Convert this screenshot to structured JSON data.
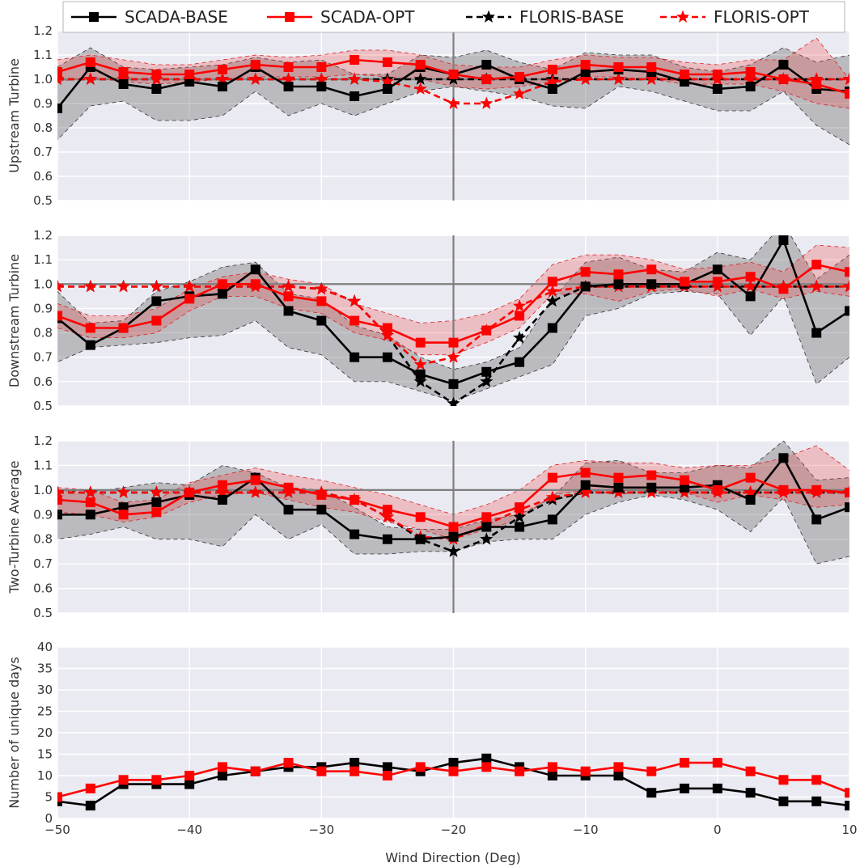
{
  "chart_data": {
    "type": "line",
    "xlabel": "Wind Direction (Deg)",
    "xlim": [
      -50,
      10
    ],
    "xticks": [
      -50,
      -40,
      -30,
      -20,
      -10,
      0,
      10
    ],
    "x": [
      -50,
      -47.5,
      -45,
      -42.5,
      -40,
      -37.5,
      -35,
      -32.5,
      -30,
      -27.5,
      -25,
      -22.5,
      -20,
      -17.5,
      -15,
      -12.5,
      -10,
      -7.5,
      -5,
      -2.5,
      0,
      2.5,
      5,
      7.5,
      10
    ],
    "x_floris": [
      -50,
      -47.5,
      -45,
      -42.5,
      -40,
      -37.5,
      -35,
      -32.5,
      -30,
      -27.5,
      -25,
      -22.5,
      -20,
      -17.5,
      -15,
      -12.5,
      -10,
      -7.5,
      -5,
      -2.5,
      0,
      2.5,
      5,
      7.5,
      10
    ],
    "grid": true,
    "legend": {
      "placement": "top",
      "entries": [
        {
          "label": "SCADA-BASE",
          "color": "#000000",
          "linestyle": "solid",
          "marker": "square"
        },
        {
          "label": "SCADA-OPT",
          "color": "#ff0000",
          "linestyle": "solid",
          "marker": "square"
        },
        {
          "label": "FLORIS-BASE",
          "color": "#000000",
          "linestyle": "dashed",
          "marker": "star"
        },
        {
          "label": "FLORIS-OPT",
          "color": "#ff0000",
          "linestyle": "dashed",
          "marker": "star"
        }
      ]
    },
    "panels": [
      {
        "ylabel": "Upstream Turbine",
        "ylim": [
          0.5,
          1.2
        ],
        "yticks": [
          0.5,
          0.6,
          0.7,
          0.8,
          0.9,
          1.0,
          1.1,
          1.2
        ],
        "ytick_labels": [
          "0.5",
          "0.6",
          "0.7",
          "0.8",
          "0.9",
          "1.0",
          "1.1",
          "1.2"
        ],
        "hline": 1.0,
        "vline": -20,
        "series": [
          {
            "name": "SCADA-BASE",
            "values": [
              0.88,
              1.05,
              0.98,
              0.96,
              0.99,
              0.97,
              1.05,
              0.97,
              0.97,
              0.93,
              0.96,
              1.05,
              1.02,
              1.06,
              1.0,
              0.96,
              1.03,
              1.04,
              1.03,
              0.99,
              0.96,
              0.97,
              1.06,
              0.96,
              0.95
            ],
            "band_lo": [
              0.75,
              0.89,
              0.91,
              0.83,
              0.83,
              0.85,
              0.95,
              0.85,
              0.9,
              0.85,
              0.9,
              0.95,
              0.97,
              0.95,
              0.93,
              0.89,
              0.88,
              0.97,
              0.95,
              0.91,
              0.87,
              0.87,
              0.95,
              0.81,
              0.73
            ],
            "band_hi": [
              1.05,
              1.13,
              1.05,
              1.04,
              1.05,
              1.06,
              1.09,
              1.07,
              1.08,
              1.02,
              1.02,
              1.1,
              1.09,
              1.12,
              1.07,
              1.04,
              1.11,
              1.1,
              1.1,
              1.05,
              1.03,
              1.06,
              1.13,
              1.07,
              1.1
            ]
          },
          {
            "name": "SCADA-OPT",
            "values": [
              1.03,
              1.07,
              1.03,
              1.02,
              1.02,
              1.04,
              1.06,
              1.05,
              1.05,
              1.08,
              1.07,
              1.06,
              1.02,
              1.0,
              1.01,
              1.04,
              1.06,
              1.05,
              1.05,
              1.02,
              1.02,
              1.03,
              1.0,
              0.98,
              0.94
            ],
            "band_lo": [
              0.99,
              1.01,
              0.99,
              0.98,
              0.99,
              1.0,
              1.01,
              1.01,
              1.01,
              1.02,
              1.01,
              1.0,
              0.97,
              0.96,
              0.97,
              0.99,
              1.01,
              1.01,
              1.0,
              0.98,
              0.98,
              0.98,
              0.95,
              0.9,
              0.88
            ],
            "band_hi": [
              1.08,
              1.1,
              1.08,
              1.06,
              1.06,
              1.08,
              1.1,
              1.09,
              1.1,
              1.12,
              1.12,
              1.1,
              1.06,
              1.05,
              1.05,
              1.08,
              1.1,
              1.09,
              1.09,
              1.07,
              1.06,
              1.08,
              1.08,
              1.17,
              1.0
            ]
          },
          {
            "name": "FLORIS-BASE",
            "values": [
              1.0,
              1.0,
              1.0,
              1.0,
              1.0,
              1.0,
              1.0,
              1.0,
              1.0,
              1.0,
              1.0,
              1.0,
              1.0,
              1.0,
              1.0,
              1.0,
              1.0,
              1.0,
              1.0,
              1.0,
              1.0,
              1.0,
              1.0,
              1.0,
              1.0
            ]
          },
          {
            "name": "FLORIS-OPT",
            "values": [
              1.0,
              1.0,
              1.0,
              1.0,
              1.0,
              1.0,
              1.0,
              1.0,
              1.0,
              1.0,
              0.99,
              0.96,
              0.9,
              0.9,
              0.94,
              0.99,
              1.0,
              1.0,
              1.0,
              1.0,
              1.0,
              1.0,
              1.0,
              1.0,
              1.0
            ]
          }
        ]
      },
      {
        "ylabel": "Downstream Turbine",
        "ylim": [
          0.5,
          1.2
        ],
        "yticks": [
          0.5,
          0.6,
          0.7,
          0.8,
          0.9,
          1.0,
          1.1,
          1.2
        ],
        "ytick_labels": [
          "0.5",
          "0.6",
          "0.7",
          "0.8",
          "0.9",
          "1.0",
          "1.1",
          "1.2"
        ],
        "hline": 1.0,
        "vline": -20,
        "series": [
          {
            "name": "SCADA-BASE",
            "values": [
              0.86,
              0.75,
              0.82,
              0.93,
              0.95,
              0.96,
              1.06,
              0.89,
              0.85,
              0.7,
              0.7,
              0.63,
              0.59,
              0.64,
              0.68,
              0.82,
              0.99,
              1.0,
              1.0,
              1.0,
              1.06,
              0.95,
              1.18,
              0.8,
              0.89
            ],
            "band_lo": [
              0.68,
              0.74,
              0.75,
              0.76,
              0.78,
              0.79,
              0.85,
              0.74,
              0.71,
              0.6,
              0.6,
              0.56,
              0.52,
              0.57,
              0.62,
              0.67,
              0.87,
              0.9,
              0.96,
              0.97,
              0.96,
              0.79,
              0.95,
              0.59,
              0.7
            ],
            "band_hi": [
              0.97,
              0.84,
              0.85,
              0.97,
              1.01,
              1.07,
              1.09,
              0.96,
              0.94,
              0.83,
              0.79,
              0.7,
              0.65,
              0.68,
              0.74,
              0.94,
              1.09,
              1.11,
              1.06,
              1.05,
              1.13,
              1.1,
              1.25,
              1.02,
              1.12
            ]
          },
          {
            "name": "SCADA-OPT",
            "values": [
              0.87,
              0.82,
              0.82,
              0.85,
              0.94,
              1.0,
              1.0,
              0.95,
              0.93,
              0.85,
              0.82,
              0.76,
              0.76,
              0.81,
              0.87,
              1.01,
              1.05,
              1.04,
              1.06,
              1.01,
              1.01,
              1.03,
              0.98,
              1.08,
              1.05
            ],
            "band_lo": [
              0.82,
              0.78,
              0.78,
              0.8,
              0.89,
              0.95,
              0.95,
              0.9,
              0.88,
              0.8,
              0.77,
              0.71,
              0.71,
              0.76,
              0.82,
              0.96,
              0.96,
              0.93,
              0.97,
              0.98,
              0.95,
              0.98,
              0.94,
              0.97,
              0.95
            ],
            "band_hi": [
              0.92,
              0.87,
              0.87,
              0.9,
              0.98,
              1.03,
              1.05,
              1.02,
              1.0,
              0.92,
              0.88,
              0.84,
              0.85,
              0.88,
              0.94,
              1.08,
              1.12,
              1.12,
              1.1,
              1.06,
              1.07,
              1.09,
              1.05,
              1.16,
              1.15
            ]
          },
          {
            "name": "FLORIS-BASE",
            "values": [
              0.99,
              0.99,
              0.99,
              0.99,
              0.99,
              0.99,
              0.99,
              0.99,
              0.98,
              0.93,
              0.79,
              0.6,
              0.51,
              0.6,
              0.78,
              0.93,
              0.99,
              0.99,
              0.99,
              0.99,
              0.99,
              0.99,
              0.99,
              0.99,
              0.99
            ]
          },
          {
            "name": "FLORIS-OPT",
            "values": [
              0.99,
              0.99,
              0.99,
              0.99,
              0.99,
              0.99,
              0.99,
              0.99,
              0.98,
              0.93,
              0.79,
              0.67,
              0.7,
              0.81,
              0.91,
              0.97,
              0.99,
              0.99,
              0.99,
              0.99,
              0.99,
              0.99,
              0.99,
              0.99,
              0.99
            ]
          }
        ]
      },
      {
        "ylabel": "Two-Turbine Average",
        "ylim": [
          0.5,
          1.2
        ],
        "yticks": [
          0.5,
          0.6,
          0.7,
          0.8,
          0.9,
          1.0,
          1.1,
          1.2
        ],
        "ytick_labels": [
          "0.5",
          "0.6",
          "0.7",
          "0.8",
          "0.9",
          "1.0",
          "1.1",
          "1.2"
        ],
        "hline": 1.0,
        "vline": -20,
        "series": [
          {
            "name": "SCADA-BASE",
            "values": [
              0.9,
              0.9,
              0.93,
              0.95,
              0.98,
              0.96,
              1.05,
              0.92,
              0.92,
              0.82,
              0.8,
              0.8,
              0.81,
              0.85,
              0.85,
              0.88,
              1.02,
              1.01,
              1.01,
              1.01,
              1.02,
              0.96,
              1.13,
              0.88,
              0.93
            ],
            "band_lo": [
              0.8,
              0.82,
              0.85,
              0.8,
              0.8,
              0.77,
              0.9,
              0.8,
              0.86,
              0.74,
              0.74,
              0.75,
              0.75,
              0.79,
              0.8,
              0.8,
              0.9,
              0.95,
              0.98,
              0.96,
              0.92,
              0.83,
              0.97,
              0.7,
              0.73
            ],
            "band_hi": [
              1.0,
              0.99,
              1.01,
              1.03,
              1.02,
              1.1,
              1.07,
              1.01,
              1.0,
              0.93,
              0.85,
              0.84,
              0.84,
              0.88,
              0.9,
              0.97,
              1.11,
              1.12,
              1.07,
              1.07,
              1.1,
              1.09,
              1.2,
              1.04,
              1.05
            ]
          },
          {
            "name": "SCADA-OPT",
            "values": [
              0.96,
              0.95,
              0.9,
              0.91,
              0.99,
              1.02,
              1.04,
              1.01,
              0.98,
              0.96,
              0.92,
              0.89,
              0.85,
              0.89,
              0.93,
              1.05,
              1.07,
              1.05,
              1.06,
              1.04,
              1.0,
              1.05,
              1.0,
              1.0,
              0.99
            ],
            "band_lo": [
              0.91,
              0.9,
              0.87,
              0.89,
              0.95,
              0.98,
              0.99,
              0.96,
              0.93,
              0.91,
              0.87,
              0.84,
              0.8,
              0.84,
              0.88,
              0.98,
              1.0,
              0.98,
              1.0,
              0.99,
              0.95,
              0.98,
              0.96,
              0.93,
              0.94
            ],
            "band_hi": [
              1.01,
              1.0,
              0.95,
              0.96,
              1.03,
              1.06,
              1.09,
              1.06,
              1.04,
              1.01,
              0.98,
              0.94,
              0.9,
              0.94,
              1.0,
              1.1,
              1.12,
              1.11,
              1.11,
              1.09,
              1.1,
              1.1,
              1.13,
              1.18,
              1.08
            ]
          },
          {
            "name": "FLORIS-BASE",
            "values": [
              0.99,
              0.99,
              0.99,
              0.99,
              0.99,
              0.99,
              0.99,
              0.99,
              0.99,
              0.96,
              0.89,
              0.8,
              0.75,
              0.8,
              0.89,
              0.96,
              0.99,
              0.99,
              0.99,
              0.99,
              0.99,
              0.99,
              0.99,
              0.99,
              0.99
            ]
          },
          {
            "name": "FLORIS-OPT",
            "values": [
              0.99,
              0.99,
              0.99,
              0.99,
              0.99,
              0.99,
              0.99,
              0.99,
              0.99,
              0.96,
              0.89,
              0.81,
              0.8,
              0.86,
              0.92,
              0.97,
              0.99,
              0.99,
              0.99,
              0.99,
              0.99,
              0.99,
              0.99,
              0.99,
              0.99
            ]
          }
        ]
      },
      {
        "ylabel": "Number of unique days",
        "ylim": [
          0,
          40
        ],
        "yticks": [
          0,
          5,
          10,
          15,
          20,
          25,
          30,
          35,
          40
        ],
        "ytick_labels": [
          "0",
          "5",
          "10",
          "15",
          "20",
          "25",
          "30",
          "35",
          "40"
        ],
        "series": [
          {
            "name": "SCADA-BASE",
            "values": [
              4,
              3,
              8,
              8,
              8,
              10,
              11,
              12,
              12,
              13,
              12,
              11,
              13,
              14,
              12,
              10,
              10,
              10,
              6,
              7,
              7,
              6,
              4,
              4,
              3
            ]
          },
          {
            "name": "SCADA-OPT",
            "values": [
              5,
              7,
              9,
              9,
              10,
              12,
              11,
              13,
              11,
              11,
              10,
              12,
              11,
              12,
              11,
              12,
              11,
              12,
              11,
              13,
              13,
              11,
              9,
              9,
              6
            ]
          }
        ]
      }
    ]
  }
}
